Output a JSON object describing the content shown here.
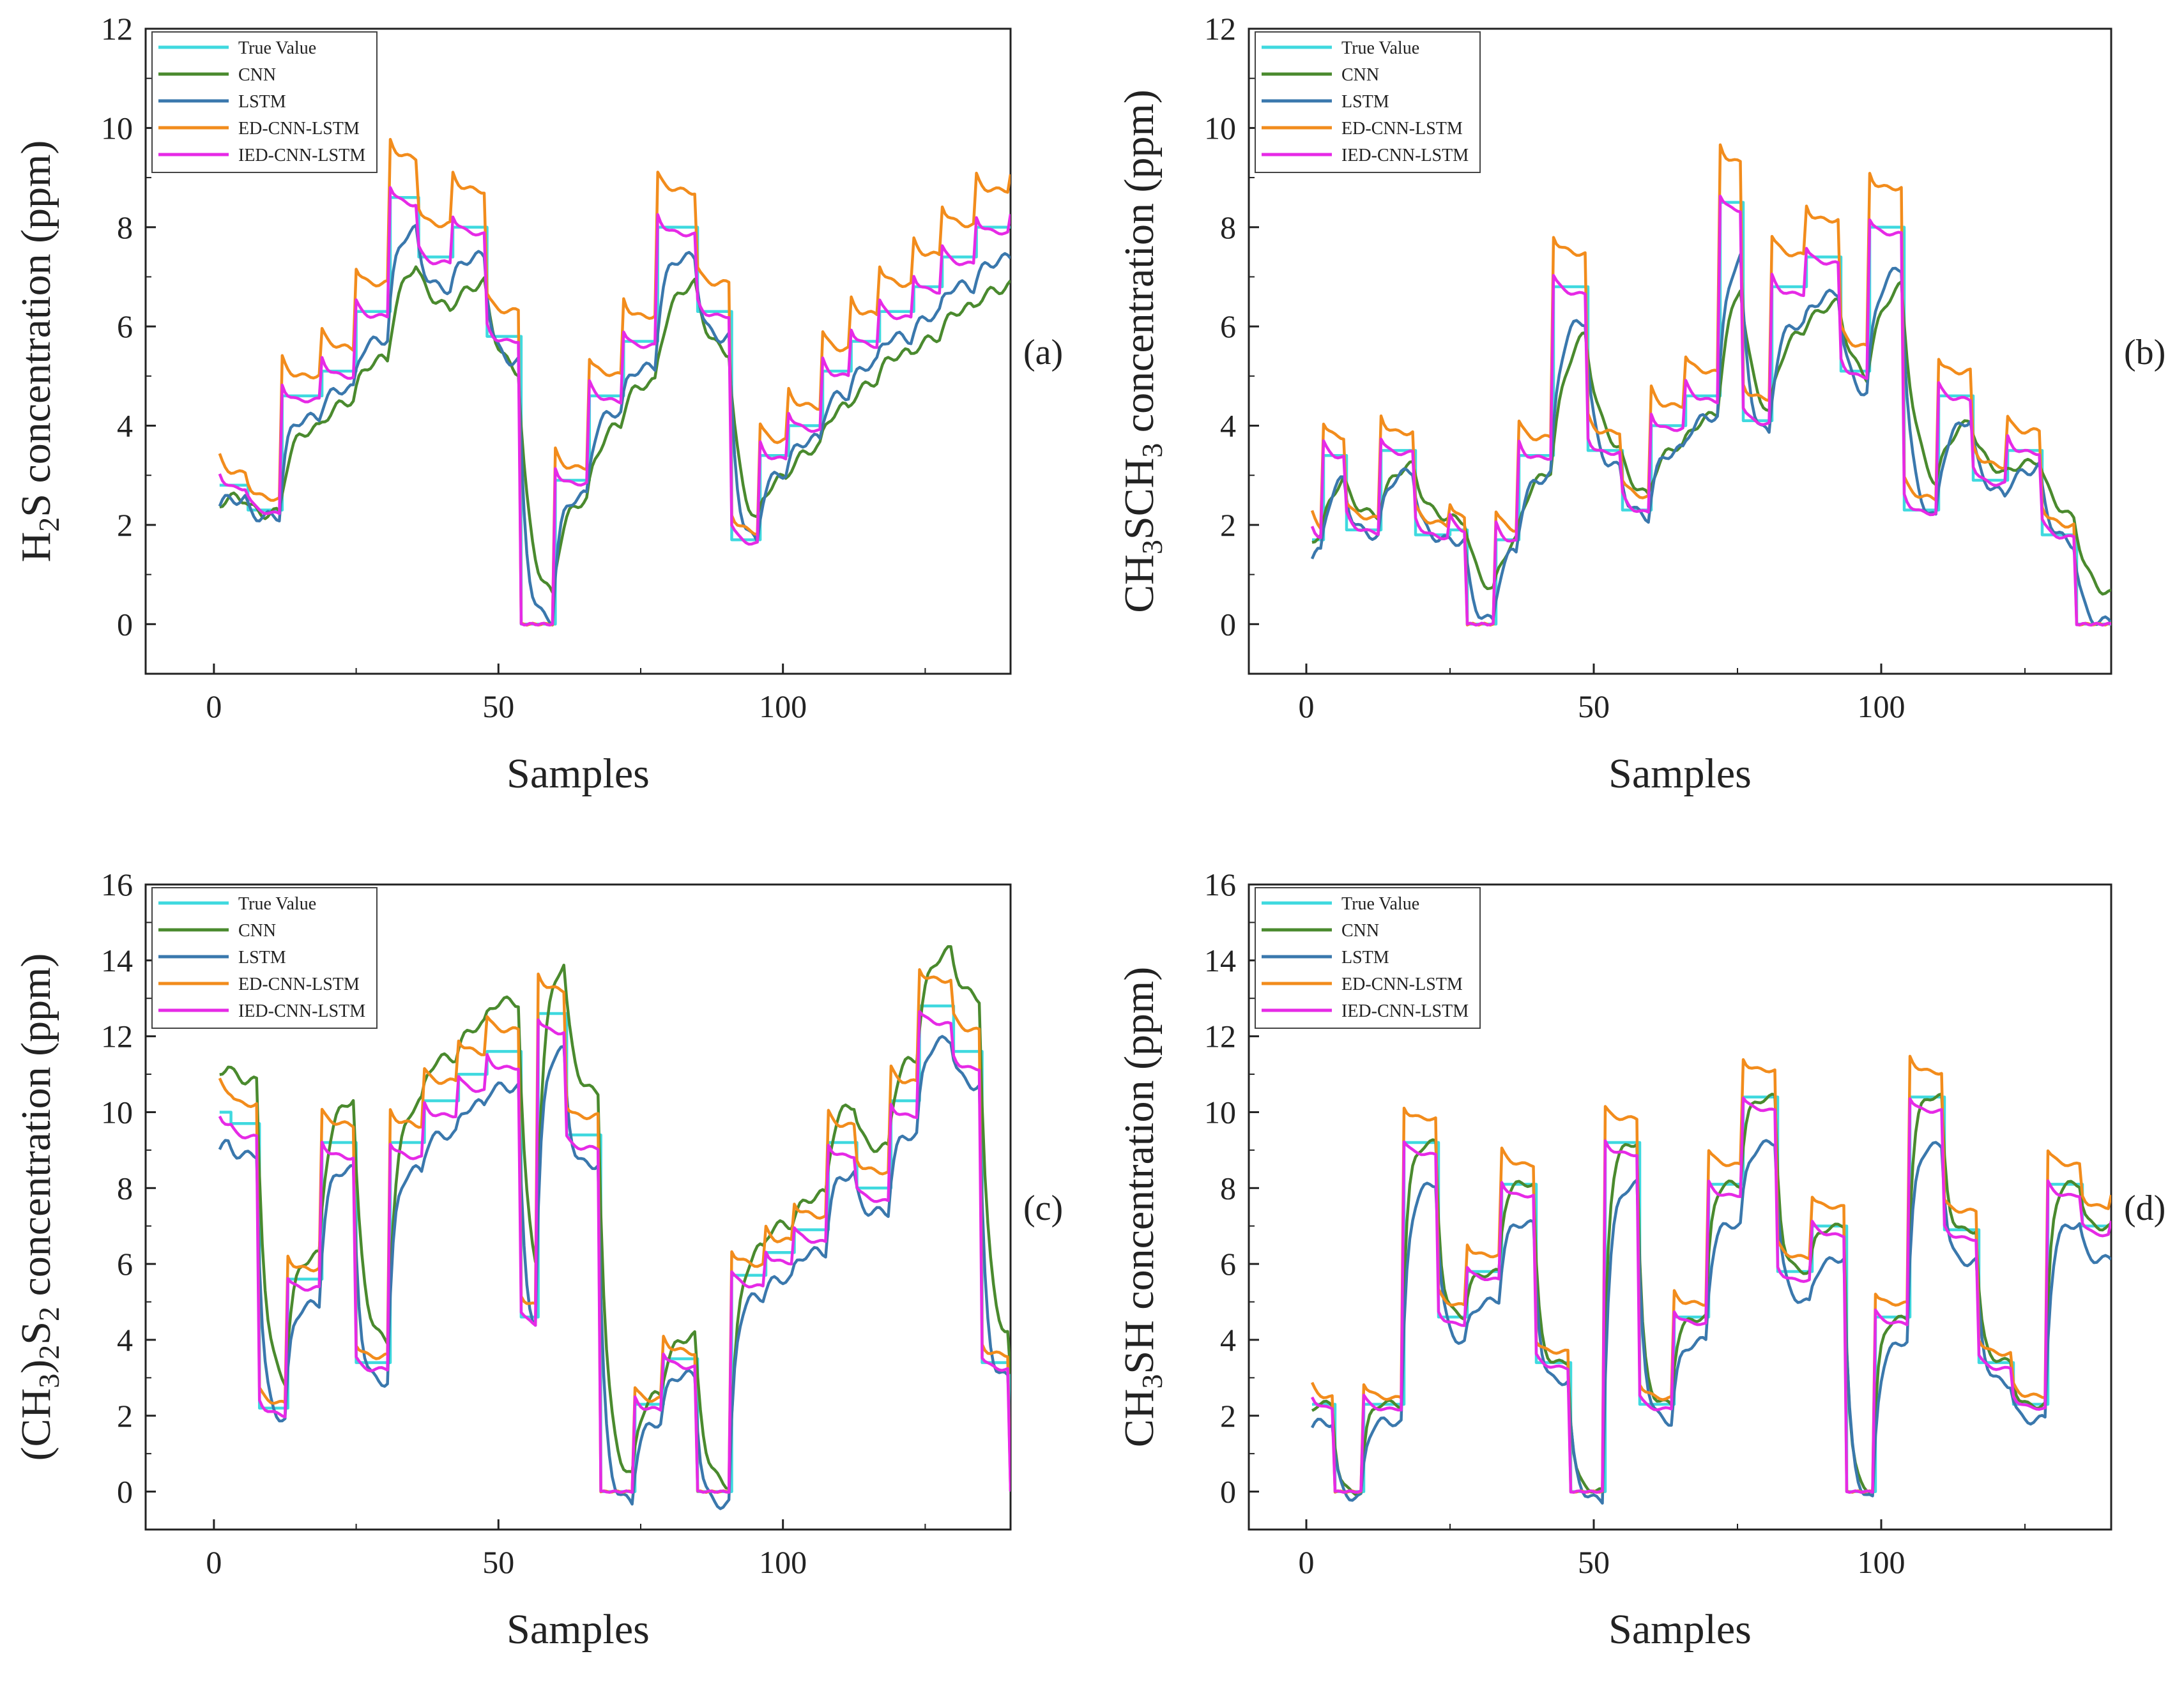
{
  "colors": {
    "true_value": "#3fd9df",
    "cnn": "#4a8a2e",
    "lstm": "#3a78ad",
    "ed_cnn_lstm": "#f28c1c",
    "ied_cnn_lstm": "#e62ae6"
  },
  "chart_data": [
    {
      "type": "line",
      "panel": "(a)",
      "xlabel": "Samples",
      "ylabel": {
        "pre": "H",
        "sub": "2",
        "post": "S  concentration (ppm)"
      },
      "xlim": [
        -12,
        140
      ],
      "ylim": [
        -1,
        12
      ],
      "xticks": [
        0,
        50,
        100
      ],
      "yticks": [
        0,
        2,
        4,
        6,
        8,
        10,
        12
      ],
      "legend": [
        "True Value",
        "CNN",
        "LSTM",
        "ED-CNN-LSTM",
        "IED-CNN-LSTM"
      ],
      "legend_position": "top-left",
      "steps": [
        [
          1,
          2.8
        ],
        [
          6,
          2.3
        ],
        [
          12,
          4.6
        ],
        [
          19,
          5.1
        ],
        [
          25,
          6.3
        ],
        [
          31,
          8.6
        ],
        [
          36,
          7.4
        ],
        [
          42,
          8.0
        ],
        [
          48,
          5.8
        ],
        [
          54,
          0
        ],
        [
          60,
          2.9
        ],
        [
          66,
          4.6
        ],
        [
          72,
          5.7
        ],
        [
          78,
          8.0
        ],
        [
          85,
          6.3
        ],
        [
          91,
          1.7
        ],
        [
          96,
          3.4
        ],
        [
          101,
          4.0
        ],
        [
          107,
          5.1
        ],
        [
          112,
          5.7
        ],
        [
          117,
          6.3
        ],
        [
          123,
          6.8
        ],
        [
          128,
          7.4
        ],
        [
          134,
          8.0
        ],
        [
          140,
          8.0
        ]
      ],
      "series": [
        {
          "name": "True Value",
          "key": "true_value",
          "mode": "step",
          "scale": 1.0,
          "offset": 0,
          "noise": 0
        },
        {
          "name": "CNN",
          "key": "cnn",
          "mode": "smooth",
          "scale": 0.82,
          "offset": 0.3,
          "noise": 0.1,
          "alpha": 0.22
        },
        {
          "name": "LSTM",
          "key": "lstm",
          "mode": "smooth",
          "scale": 0.92,
          "offset": 0.0,
          "noise": 0.1,
          "alpha": 0.35
        },
        {
          "name": "ED-CNN-LSTM",
          "key": "ed_cnn_lstm",
          "mode": "overshoot",
          "scale": 1.09,
          "offset": 0.0,
          "noise": 0.08
        },
        {
          "name": "IED-CNN-LSTM",
          "key": "ied_cnn_lstm",
          "mode": "overshoot",
          "scale": 0.99,
          "offset": -0.05,
          "noise": 0.06
        }
      ]
    },
    {
      "type": "line",
      "panel": "(b)",
      "xlabel": "Samples",
      "ylabel": {
        "pre": "CH",
        "sub": "3",
        "mid": "SCH",
        "sub2": "3",
        "post": "  concentration (ppm)"
      },
      "xlim": [
        -10,
        140
      ],
      "ylim": [
        -1,
        12
      ],
      "xticks": [
        0,
        50,
        100
      ],
      "yticks": [
        0,
        2,
        4,
        6,
        8,
        10,
        12
      ],
      "legend": [
        "True Value",
        "CNN",
        "LSTM",
        "ED-CNN-LSTM",
        "IED-CNN-LSTM"
      ],
      "legend_position": "top-left",
      "steps": [
        [
          1,
          1.7
        ],
        [
          3,
          3.4
        ],
        [
          7,
          1.9
        ],
        [
          13,
          3.5
        ],
        [
          19,
          1.8
        ],
        [
          25,
          1.9
        ],
        [
          28,
          0
        ],
        [
          33,
          1.7
        ],
        [
          37,
          3.4
        ],
        [
          43,
          6.8
        ],
        [
          49,
          3.5
        ],
        [
          55,
          2.3
        ],
        [
          60,
          4.0
        ],
        [
          66,
          4.6
        ],
        [
          72,
          8.5
        ],
        [
          76,
          4.1
        ],
        [
          81,
          6.8
        ],
        [
          87,
          7.4
        ],
        [
          93,
          5.1
        ],
        [
          98,
          8.0
        ],
        [
          104,
          2.3
        ],
        [
          110,
          4.6
        ],
        [
          116,
          2.9
        ],
        [
          122,
          3.5
        ],
        [
          128,
          1.8
        ],
        [
          134,
          0
        ],
        [
          140,
          0
        ]
      ],
      "series": [
        {
          "name": "True Value",
          "key": "true_value",
          "mode": "step",
          "scale": 1.0,
          "offset": 0,
          "noise": 0
        },
        {
          "name": "CNN",
          "key": "cnn",
          "mode": "smooth",
          "scale": 0.82,
          "offset": 0.5,
          "noise": 0.08,
          "alpha": 0.18
        },
        {
          "name": "LSTM",
          "key": "lstm",
          "mode": "smooth",
          "scale": 0.9,
          "offset": 0.0,
          "noise": 0.1,
          "alpha": 0.3
        },
        {
          "name": "ED-CNN-LSTM",
          "key": "ed_cnn_lstm",
          "mode": "overshoot",
          "scale": 1.09,
          "offset": 0.05,
          "noise": 0.08
        },
        {
          "name": "IED-CNN-LSTM",
          "key": "ied_cnn_lstm",
          "mode": "overshoot",
          "scale": 0.98,
          "offset": 0.0,
          "noise": 0.06
        }
      ]
    },
    {
      "type": "line",
      "panel": "(c)",
      "xlabel": "Samples",
      "ylabel": {
        "pre": "(CH",
        "sub": "3",
        "mid": ")",
        "sub2": "2",
        "post2": "S",
        "sub3": "2",
        "post": "  concentration (ppm)"
      },
      "xlim": [
        -12,
        140
      ],
      "ylim": [
        -1,
        16
      ],
      "xticks": [
        0,
        50,
        100
      ],
      "yticks": [
        0,
        2,
        4,
        6,
        8,
        10,
        12,
        14,
        16
      ],
      "legend": [
        "True Value",
        "CNN",
        "LSTM",
        "ED-CNN-LSTM",
        "IED-CNN-LSTM"
      ],
      "legend_position": "top-left",
      "steps": [
        [
          1,
          10.0
        ],
        [
          3,
          9.7
        ],
        [
          8,
          2.2
        ],
        [
          13,
          5.6
        ],
        [
          19,
          9.2
        ],
        [
          25,
          3.4
        ],
        [
          31,
          9.2
        ],
        [
          37,
          10.3
        ],
        [
          43,
          11.0
        ],
        [
          48,
          11.6
        ],
        [
          54,
          4.6
        ],
        [
          57,
          12.6
        ],
        [
          62,
          9.4
        ],
        [
          68,
          0
        ],
        [
          74,
          2.3
        ],
        [
          79,
          3.5
        ],
        [
          85,
          0
        ],
        [
          91,
          5.7
        ],
        [
          97,
          6.3
        ],
        [
          102,
          6.9
        ],
        [
          108,
          9.2
        ],
        [
          113,
          8.0
        ],
        [
          119,
          10.3
        ],
        [
          124,
          12.8
        ],
        [
          130,
          11.6
        ],
        [
          135,
          3.4
        ],
        [
          140,
          0
        ]
      ],
      "series": [
        {
          "name": "True Value",
          "key": "true_value",
          "mode": "step",
          "scale": 1.0,
          "offset": 0,
          "noise": 0
        },
        {
          "name": "CNN",
          "key": "cnn",
          "mode": "smooth",
          "scale": 1.1,
          "offset": 0.2,
          "noise": 0.12,
          "alpha": 0.3
        },
        {
          "name": "LSTM",
          "key": "lstm",
          "mode": "smooth",
          "scale": 0.95,
          "offset": -0.3,
          "noise": 0.12,
          "alpha": 0.4
        },
        {
          "name": "ED-CNN-LSTM",
          "key": "ed_cnn_lstm",
          "mode": "overshoot",
          "scale": 1.05,
          "offset": 0.0,
          "noise": 0.1
        },
        {
          "name": "IED-CNN-LSTM",
          "key": "ied_cnn_lstm",
          "mode": "overshoot",
          "scale": 0.97,
          "offset": -0.1,
          "noise": 0.08
        }
      ]
    },
    {
      "type": "line",
      "panel": "(d)",
      "xlabel": "Samples",
      "ylabel": {
        "pre": "CH",
        "sub": "3",
        "post": "SH  concentration (ppm)"
      },
      "xlim": [
        -10,
        140
      ],
      "ylim": [
        -1,
        16
      ],
      "xticks": [
        0,
        50,
        100
      ],
      "yticks": [
        0,
        2,
        4,
        6,
        8,
        10,
        12,
        14,
        16
      ],
      "legend": [
        "True Value",
        "CNN",
        "LSTM",
        "ED-CNN-LSTM",
        "IED-CNN-LSTM"
      ],
      "legend_position": "top-left",
      "steps": [
        [
          1,
          2.3
        ],
        [
          5,
          0
        ],
        [
          10,
          2.3
        ],
        [
          17,
          9.2
        ],
        [
          23,
          4.6
        ],
        [
          28,
          5.8
        ],
        [
          34,
          8.1
        ],
        [
          40,
          3.4
        ],
        [
          46,
          0
        ],
        [
          52,
          9.2
        ],
        [
          58,
          2.3
        ],
        [
          64,
          4.6
        ],
        [
          70,
          8.1
        ],
        [
          76,
          10.4
        ],
        [
          82,
          5.8
        ],
        [
          88,
          7.0
        ],
        [
          94,
          0
        ],
        [
          99,
          4.6
        ],
        [
          105,
          10.4
        ],
        [
          111,
          6.9
        ],
        [
          117,
          3.4
        ],
        [
          123,
          2.3
        ],
        [
          129,
          8.1
        ],
        [
          135,
          7.0
        ],
        [
          140,
          7.0
        ]
      ],
      "series": [
        {
          "name": "True Value",
          "key": "true_value",
          "mode": "step",
          "scale": 1.0,
          "offset": 0,
          "noise": 0
        },
        {
          "name": "CNN",
          "key": "cnn",
          "mode": "smooth",
          "scale": 1.0,
          "offset": 0.0,
          "noise": 0.08,
          "alpha": 0.45
        },
        {
          "name": "LSTM",
          "key": "lstm",
          "mode": "smooth",
          "scale": 0.9,
          "offset": -0.2,
          "noise": 0.1,
          "alpha": 0.4
        },
        {
          "name": "ED-CNN-LSTM",
          "key": "ed_cnn_lstm",
          "mode": "overshoot",
          "scale": 1.06,
          "offset": 0.05,
          "noise": 0.08
        },
        {
          "name": "IED-CNN-LSTM",
          "key": "ied_cnn_lstm",
          "mode": "overshoot",
          "scale": 0.97,
          "offset": -0.05,
          "noise": 0.06
        }
      ]
    }
  ]
}
